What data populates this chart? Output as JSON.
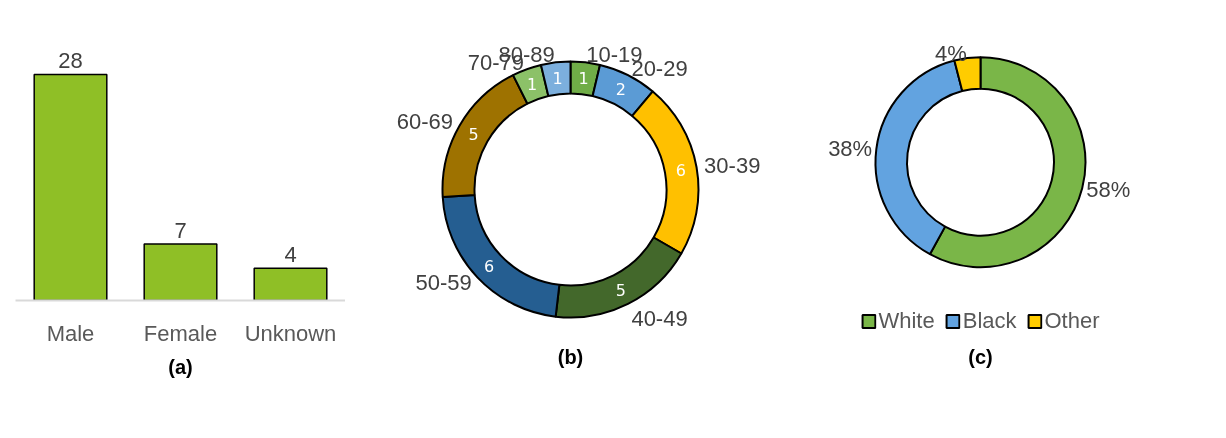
{
  "chart_data": [
    {
      "type": "bar",
      "title": "(a)",
      "categories": [
        "Male",
        "Female",
        "Unknown"
      ],
      "values": [
        28,
        7,
        4
      ],
      "color": "#8fbf26",
      "data_labels": true,
      "grid": false
    },
    {
      "type": "donut",
      "title": "(b)",
      "categories": [
        "10-19",
        "20-29",
        "30-39",
        "40-49",
        "50-59",
        "60-69",
        "70-79",
        "80-89"
      ],
      "values": [
        1,
        2,
        6,
        5,
        6,
        5,
        1,
        1
      ],
      "colors": [
        "#70ad47",
        "#5b9bd5",
        "#ffc000",
        "#43682b",
        "#255e91",
        "#9e7200",
        "#8cc168",
        "#7cafdd"
      ],
      "data_labels": true,
      "legend": false
    },
    {
      "type": "donut",
      "title": "(c)",
      "categories": [
        "White",
        "Black",
        "Other"
      ],
      "values": [
        58,
        38,
        4
      ],
      "colors": [
        "#7ab648",
        "#62a3e0",
        "#ffcc00"
      ],
      "value_labels": [
        "58%",
        "38%",
        "4%"
      ],
      "legend": "bottom"
    }
  ]
}
